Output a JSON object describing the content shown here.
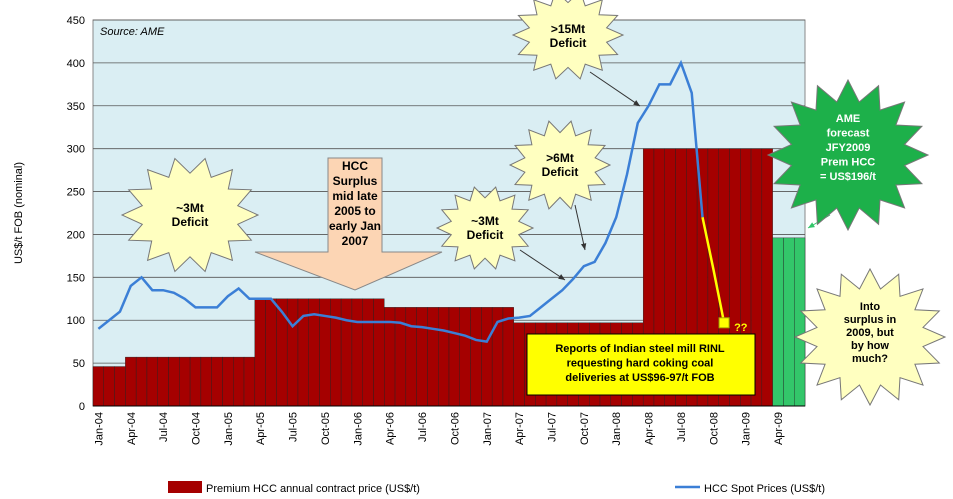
{
  "chart_data": {
    "type": "bar_line",
    "source": "Source: AME",
    "y_label": "US$/t FOB (nominal)",
    "ylim": [
      0,
      450
    ],
    "yticks": [
      0,
      50,
      100,
      150,
      200,
      250,
      300,
      350,
      400,
      450
    ],
    "grid": true,
    "categories": [
      "Jan-04",
      null,
      null,
      "Apr-04",
      null,
      null,
      "Jul-04",
      null,
      null,
      "Oct-04",
      null,
      null,
      "Jan-05",
      null,
      null,
      "Apr-05",
      null,
      null,
      "Jul-05",
      null,
      null,
      "Oct-05",
      null,
      null,
      "Jan-06",
      null,
      null,
      "Apr-06",
      null,
      null,
      "Jul-06",
      null,
      null,
      "Oct-06",
      null,
      null,
      "Jan-07",
      null,
      null,
      "Apr-07",
      null,
      null,
      "Jul-07",
      null,
      null,
      "Oct-07",
      null,
      null,
      "Jan-08",
      null,
      null,
      "Apr-08",
      null,
      null,
      "Jul-08",
      null,
      null,
      "Oct-08",
      null,
      null,
      "Jan-09",
      null,
      null,
      "Apr-09",
      null,
      null
    ],
    "series": [
      {
        "name": "Premium HCC annual contract price (US$/t)",
        "kind": "bar",
        "color": "#a50000",
        "colors": [
          "#a50000",
          "#a50000",
          "#a50000",
          "#a50000",
          "#a50000",
          "#a50000",
          "#a50000",
          "#a50000",
          "#a50000",
          "#a50000",
          "#a50000",
          "#a50000",
          "#a50000",
          "#a50000",
          "#a50000",
          "#a50000",
          "#a50000",
          "#a50000",
          "#a50000",
          "#a50000",
          "#a50000",
          "#a50000",
          "#a50000",
          "#a50000",
          "#a50000",
          "#a50000",
          "#a50000",
          "#a50000",
          "#a50000",
          "#a50000",
          "#a50000",
          "#a50000",
          "#a50000",
          "#a50000",
          "#a50000",
          "#a50000",
          "#a50000",
          "#a50000",
          "#a50000",
          "#a50000",
          "#a50000",
          "#a50000",
          "#a50000",
          "#a50000",
          "#a50000",
          "#a50000",
          "#a50000",
          "#a50000",
          "#a50000",
          "#a50000",
          "#a50000",
          "#a50000",
          "#a50000",
          "#a50000",
          "#a50000",
          "#a50000",
          "#a50000",
          "#a50000",
          "#a50000",
          "#a50000",
          "#a50000",
          "#a50000",
          "#a50000",
          "#33c66a",
          "#33c66a",
          "#33c66a"
        ],
        "values": [
          46,
          46,
          46,
          57,
          57,
          57,
          57,
          57,
          57,
          57,
          57,
          57,
          57,
          57,
          57,
          125,
          125,
          125,
          125,
          125,
          125,
          125,
          125,
          125,
          125,
          125,
          125,
          115,
          115,
          115,
          115,
          115,
          115,
          115,
          115,
          115,
          115,
          115,
          115,
          97,
          97,
          97,
          97,
          97,
          97,
          97,
          97,
          97,
          97,
          97,
          97,
          300,
          300,
          300,
          300,
          300,
          300,
          300,
          300,
          300,
          300,
          300,
          300,
          196,
          196,
          196
        ]
      },
      {
        "name": "HCC Spot Prices (US$/t)",
        "kind": "line",
        "color": "#3b7fd6",
        "values": [
          90,
          100,
          110,
          140,
          150,
          135,
          135,
          132,
          125,
          115,
          115,
          115,
          128,
          137,
          125,
          125,
          125,
          110,
          93,
          105,
          107,
          105,
          103,
          100,
          98,
          98,
          98,
          98,
          97,
          93,
          92,
          90,
          88,
          85,
          82,
          77,
          75,
          98,
          102,
          103,
          105,
          115,
          125,
          135,
          148,
          163,
          168,
          190,
          220,
          270,
          330,
          350,
          375,
          375,
          400,
          365,
          220,
          null,
          null,
          null,
          null,
          null,
          null,
          null,
          null,
          null
        ]
      }
    ],
    "forecast_line": {
      "color": "#ffff00",
      "values": [
        null,
        null,
        null,
        null,
        null,
        null,
        null,
        null,
        null,
        null,
        null,
        null,
        null,
        null,
        null,
        null,
        null,
        null,
        null,
        null,
        null,
        null,
        null,
        null,
        null,
        null,
        null,
        null,
        null,
        null,
        null,
        null,
        null,
        null,
        null,
        null,
        null,
        null,
        null,
        null,
        null,
        null,
        null,
        null,
        null,
        null,
        null,
        null,
        null,
        null,
        null,
        null,
        null,
        null,
        null,
        null,
        220,
        160,
        97,
        null,
        null,
        null,
        null,
        null,
        null,
        null
      ]
    },
    "marker_label": "??",
    "annotations": [
      {
        "lines": [
          "~3Mt",
          "Deficit"
        ]
      },
      {
        "lines": [
          ">15Mt",
          "Deficit"
        ]
      },
      {
        "lines": [
          ">6Mt",
          "Deficit"
        ]
      },
      {
        "lines": [
          "~3Mt",
          "Deficit"
        ]
      },
      {
        "lines": [
          "HCC",
          "Surplus",
          "mid late",
          "2005 to",
          "early Jan",
          "2007"
        ]
      },
      {
        "lines": [
          "AME",
          "forecast",
          "JFY2009",
          "Prem HCC",
          "= US$196/t"
        ]
      },
      {
        "lines": [
          "Into",
          "surplus in",
          "2009, but",
          "by how",
          "much?"
        ]
      },
      {
        "lines": [
          "Reports of Indian steel mill RINL",
          "requesting hard coking coal",
          "deliveries at US$96-97/t FOB"
        ]
      }
    ]
  }
}
